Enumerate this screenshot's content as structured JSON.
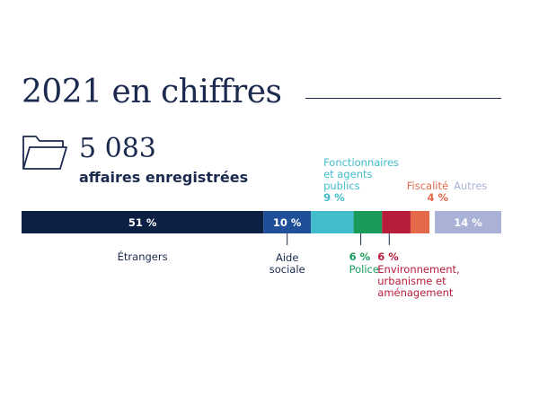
{
  "header": {
    "title": "2021 en chiffres",
    "count": "5 083",
    "count_label": "affaires enregistrées"
  },
  "icons": {
    "folder": "folder-icon"
  },
  "colors": {
    "text_primary": "#1b2a4e"
  },
  "chart_data": {
    "type": "bar",
    "orientation": "stacked-horizontal",
    "unit": "%",
    "segments": [
      {
        "label_lines": [
          "Étrangers"
        ],
        "value": 51,
        "value_label": "51 %",
        "color": "#0c2044",
        "label_color": "#1b2a4e"
      },
      {
        "label_lines": [
          "Aide",
          "sociale"
        ],
        "value": 10,
        "value_label": "10 %",
        "color": "#1f4f98",
        "label_color": "#1b2a4e"
      },
      {
        "label_lines": [
          "Fonctionnaires",
          "et agents",
          "publics"
        ],
        "value": 9,
        "value_label": "9 %",
        "color": "#42bccb",
        "label_color": "#42bccb"
      },
      {
        "label_lines": [
          "Police"
        ],
        "value": 6,
        "value_label": "6 %",
        "color": "#1a9a5a",
        "label_color": "#1a9a5a"
      },
      {
        "label_lines": [
          "Environnement,",
          "urbanisme et",
          "aménagement"
        ],
        "value": 6,
        "value_label": "6 %",
        "color": "#b71c3a",
        "label_color": "#b71c3a"
      },
      {
        "label_lines": [
          "Fiscalité"
        ],
        "value": 4,
        "value_label": "4 %",
        "color": "#e3694a",
        "label_color": "#e3694a"
      },
      {
        "label_lines": [
          "Autres"
        ],
        "value": 14,
        "value_label": "14 %",
        "color": "#a9b2d6",
        "label_color": "#a9b2d6"
      }
    ]
  }
}
